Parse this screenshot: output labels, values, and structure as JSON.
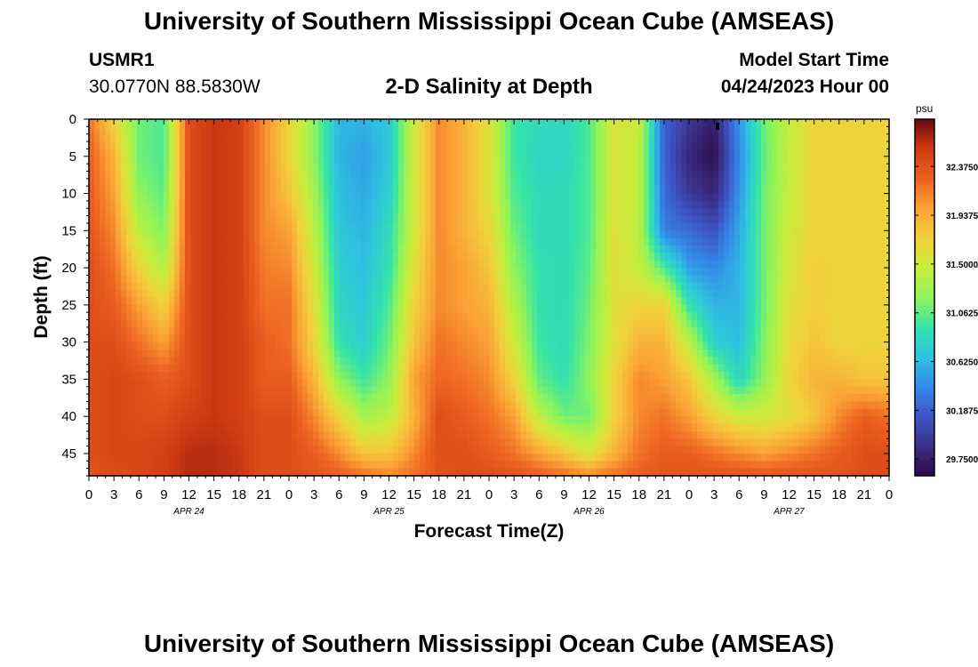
{
  "header": {
    "title": "University of Southern Mississippi Ocean Cube (AMSEAS)",
    "station_id": "USMR1",
    "location": "30.0770N  88.5830W",
    "plot_title": "2-D Salinity at Depth",
    "model_start_label": "Model Start Time",
    "model_start_value": "04/24/2023 Hour 00"
  },
  "footer": {
    "title": "University of Southern Mississippi Ocean Cube (AMSEAS)"
  },
  "chart_data": {
    "type": "heatmap",
    "title": "2-D Salinity at Depth",
    "xlabel": "Forecast Time(Z)",
    "ylabel": "Depth (ft)",
    "x_unit": "hours since 04/24/2023 00Z",
    "xlim": [
      0,
      96
    ],
    "ylim": [
      0,
      48
    ],
    "x_tick_values": [
      0,
      3,
      6,
      9,
      12,
      15,
      18,
      21,
      24,
      27,
      30,
      33,
      36,
      39,
      42,
      45,
      48,
      51,
      54,
      57,
      60,
      63,
      66,
      69,
      72,
      75,
      78,
      81,
      84,
      87,
      90,
      93,
      96
    ],
    "x_tick_labels": [
      "0",
      "3",
      "6",
      "9",
      "12",
      "15",
      "18",
      "21",
      "0",
      "3",
      "6",
      "9",
      "12",
      "15",
      "18",
      "21",
      "0",
      "3",
      "6",
      "9",
      "12",
      "15",
      "18",
      "21",
      "0",
      "3",
      "6",
      "9",
      "12",
      "15",
      "18",
      "21",
      "0"
    ],
    "day_labels": [
      {
        "hour": 12,
        "label": "APR 24"
      },
      {
        "hour": 36,
        "label": "APR 25"
      },
      {
        "hour": 60,
        "label": "APR 26"
      },
      {
        "hour": 84,
        "label": "APR 27"
      }
    ],
    "y_tick_values": [
      0,
      5,
      10,
      15,
      20,
      25,
      30,
      35,
      40,
      45
    ],
    "y_tick_labels": [
      "0",
      "5",
      "10",
      "15",
      "20",
      "25",
      "30",
      "35",
      "40",
      "45"
    ],
    "colorbar": {
      "unit": "psu",
      "range": [
        29.6,
        32.8
      ],
      "ticks": [
        32.375,
        31.9375,
        31.5,
        31.0625,
        30.625,
        30.1875,
        29.75
      ],
      "tick_labels": [
        "32.3750",
        "31.9375",
        "31.5000",
        "31.0625",
        "30.6250",
        "30.1875",
        "29.7500"
      ],
      "colors": [
        "#2b0a44",
        "#3b2e86",
        "#3d55c6",
        "#3489e8",
        "#2ec3e0",
        "#36e4a8",
        "#90f45a",
        "#c8ec3c",
        "#f2d03c",
        "#fba236",
        "#ec6120",
        "#cf3a12",
        "#6b0a0a"
      ]
    },
    "depths_ft": [
      0,
      5,
      10,
      15,
      20,
      25,
      30,
      35,
      40,
      45,
      48
    ],
    "times_hr": [
      0,
      3,
      6,
      9,
      12,
      15,
      18,
      21,
      24,
      27,
      30,
      33,
      36,
      39,
      42,
      45,
      48,
      51,
      54,
      57,
      60,
      63,
      66,
      69,
      72,
      75,
      78,
      81,
      84,
      87,
      90,
      93,
      96
    ],
    "salinity_psu": [
      [
        32.2,
        31.7,
        31.1,
        31.0,
        32.4,
        32.55,
        32.5,
        32.1,
        31.7,
        31.2,
        30.6,
        30.6,
        30.7,
        31.5,
        32.1,
        31.9,
        31.6,
        30.95,
        30.85,
        30.8,
        31.0,
        31.55,
        31.5,
        30.2,
        29.95,
        29.75,
        30.45,
        31.1,
        31.45,
        31.7,
        31.7,
        31.7,
        31.7
      ],
      [
        32.3,
        31.9,
        31.1,
        31.0,
        32.4,
        32.55,
        32.5,
        32.1,
        31.7,
        31.2,
        30.6,
        30.5,
        30.7,
        31.5,
        32.1,
        31.9,
        31.6,
        30.95,
        30.8,
        30.8,
        31.0,
        31.55,
        31.45,
        30.2,
        29.8,
        29.65,
        30.4,
        31.05,
        31.45,
        31.7,
        31.7,
        31.7,
        31.7
      ],
      [
        32.3,
        32.0,
        31.2,
        31.05,
        32.4,
        32.55,
        32.5,
        32.1,
        31.8,
        31.3,
        30.65,
        30.55,
        30.75,
        31.5,
        32.1,
        31.9,
        31.6,
        31.0,
        30.85,
        30.85,
        31.0,
        31.55,
        31.45,
        30.25,
        29.95,
        29.8,
        30.45,
        31.1,
        31.45,
        31.7,
        31.7,
        31.7,
        31.7
      ],
      [
        32.35,
        32.1,
        31.4,
        31.15,
        32.4,
        32.55,
        32.5,
        32.1,
        32.0,
        31.4,
        30.7,
        30.6,
        30.85,
        31.5,
        32.1,
        31.9,
        31.7,
        31.1,
        30.85,
        30.85,
        31.0,
        31.6,
        31.4,
        30.35,
        30.25,
        30.1,
        30.55,
        31.1,
        31.5,
        31.7,
        31.7,
        31.7,
        31.7
      ],
      [
        32.4,
        32.2,
        31.7,
        31.35,
        32.4,
        32.55,
        32.5,
        32.15,
        32.1,
        31.5,
        30.75,
        30.65,
        30.9,
        31.6,
        32.1,
        32.0,
        31.8,
        31.2,
        30.9,
        30.85,
        31.05,
        31.6,
        31.45,
        31.0,
        30.5,
        30.4,
        30.6,
        31.1,
        31.55,
        31.75,
        31.7,
        31.7,
        31.7
      ],
      [
        32.4,
        32.3,
        32.0,
        31.7,
        32.4,
        32.55,
        32.5,
        32.2,
        32.2,
        31.6,
        30.8,
        30.7,
        31.0,
        31.7,
        32.1,
        32.0,
        31.9,
        31.35,
        30.9,
        30.85,
        31.1,
        31.6,
        31.7,
        31.7,
        30.9,
        30.6,
        30.6,
        31.1,
        31.6,
        31.75,
        31.7,
        31.7,
        31.7
      ],
      [
        32.4,
        32.4,
        32.2,
        32.0,
        32.4,
        32.55,
        32.5,
        32.3,
        32.2,
        31.7,
        30.9,
        30.75,
        31.1,
        31.8,
        32.2,
        32.1,
        32.0,
        31.5,
        30.95,
        30.85,
        31.15,
        31.6,
        31.9,
        31.9,
        31.4,
        30.75,
        30.65,
        31.15,
        31.65,
        31.8,
        31.7,
        31.7,
        31.7
      ],
      [
        32.4,
        32.45,
        32.4,
        32.3,
        32.4,
        32.55,
        32.5,
        32.3,
        32.3,
        31.9,
        31.2,
        30.95,
        31.2,
        32.0,
        32.25,
        32.2,
        32.1,
        31.7,
        31.05,
        30.9,
        31.2,
        31.7,
        32.1,
        32.0,
        31.8,
        31.3,
        30.8,
        31.2,
        31.7,
        31.9,
        31.9,
        31.8,
        31.8
      ],
      [
        32.4,
        32.45,
        32.4,
        32.4,
        32.5,
        32.55,
        32.5,
        32.4,
        32.4,
        32.1,
        31.7,
        31.3,
        31.4,
        31.9,
        32.4,
        32.3,
        32.2,
        32.0,
        31.4,
        31.1,
        31.1,
        31.7,
        32.1,
        32.2,
        32.0,
        31.7,
        31.5,
        31.5,
        31.6,
        31.8,
        32.1,
        32.3,
        32.2
      ],
      [
        32.4,
        32.45,
        32.45,
        32.5,
        32.6,
        32.6,
        32.55,
        32.4,
        32.4,
        32.3,
        32.1,
        31.8,
        31.8,
        32.1,
        32.4,
        32.4,
        32.3,
        32.2,
        32.0,
        31.8,
        31.55,
        31.9,
        32.2,
        32.3,
        32.3,
        32.2,
        32.1,
        32.0,
        32.1,
        32.2,
        32.3,
        32.4,
        32.4
      ],
      [
        32.35,
        32.4,
        32.45,
        32.5,
        32.6,
        32.6,
        32.55,
        32.4,
        32.4,
        32.35,
        32.3,
        32.2,
        32.1,
        32.2,
        32.35,
        32.4,
        32.4,
        32.35,
        32.3,
        32.2,
        32.1,
        32.2,
        32.3,
        32.35,
        32.35,
        32.35,
        32.35,
        32.35,
        32.35,
        32.35,
        32.35,
        32.4,
        32.4
      ]
    ]
  }
}
